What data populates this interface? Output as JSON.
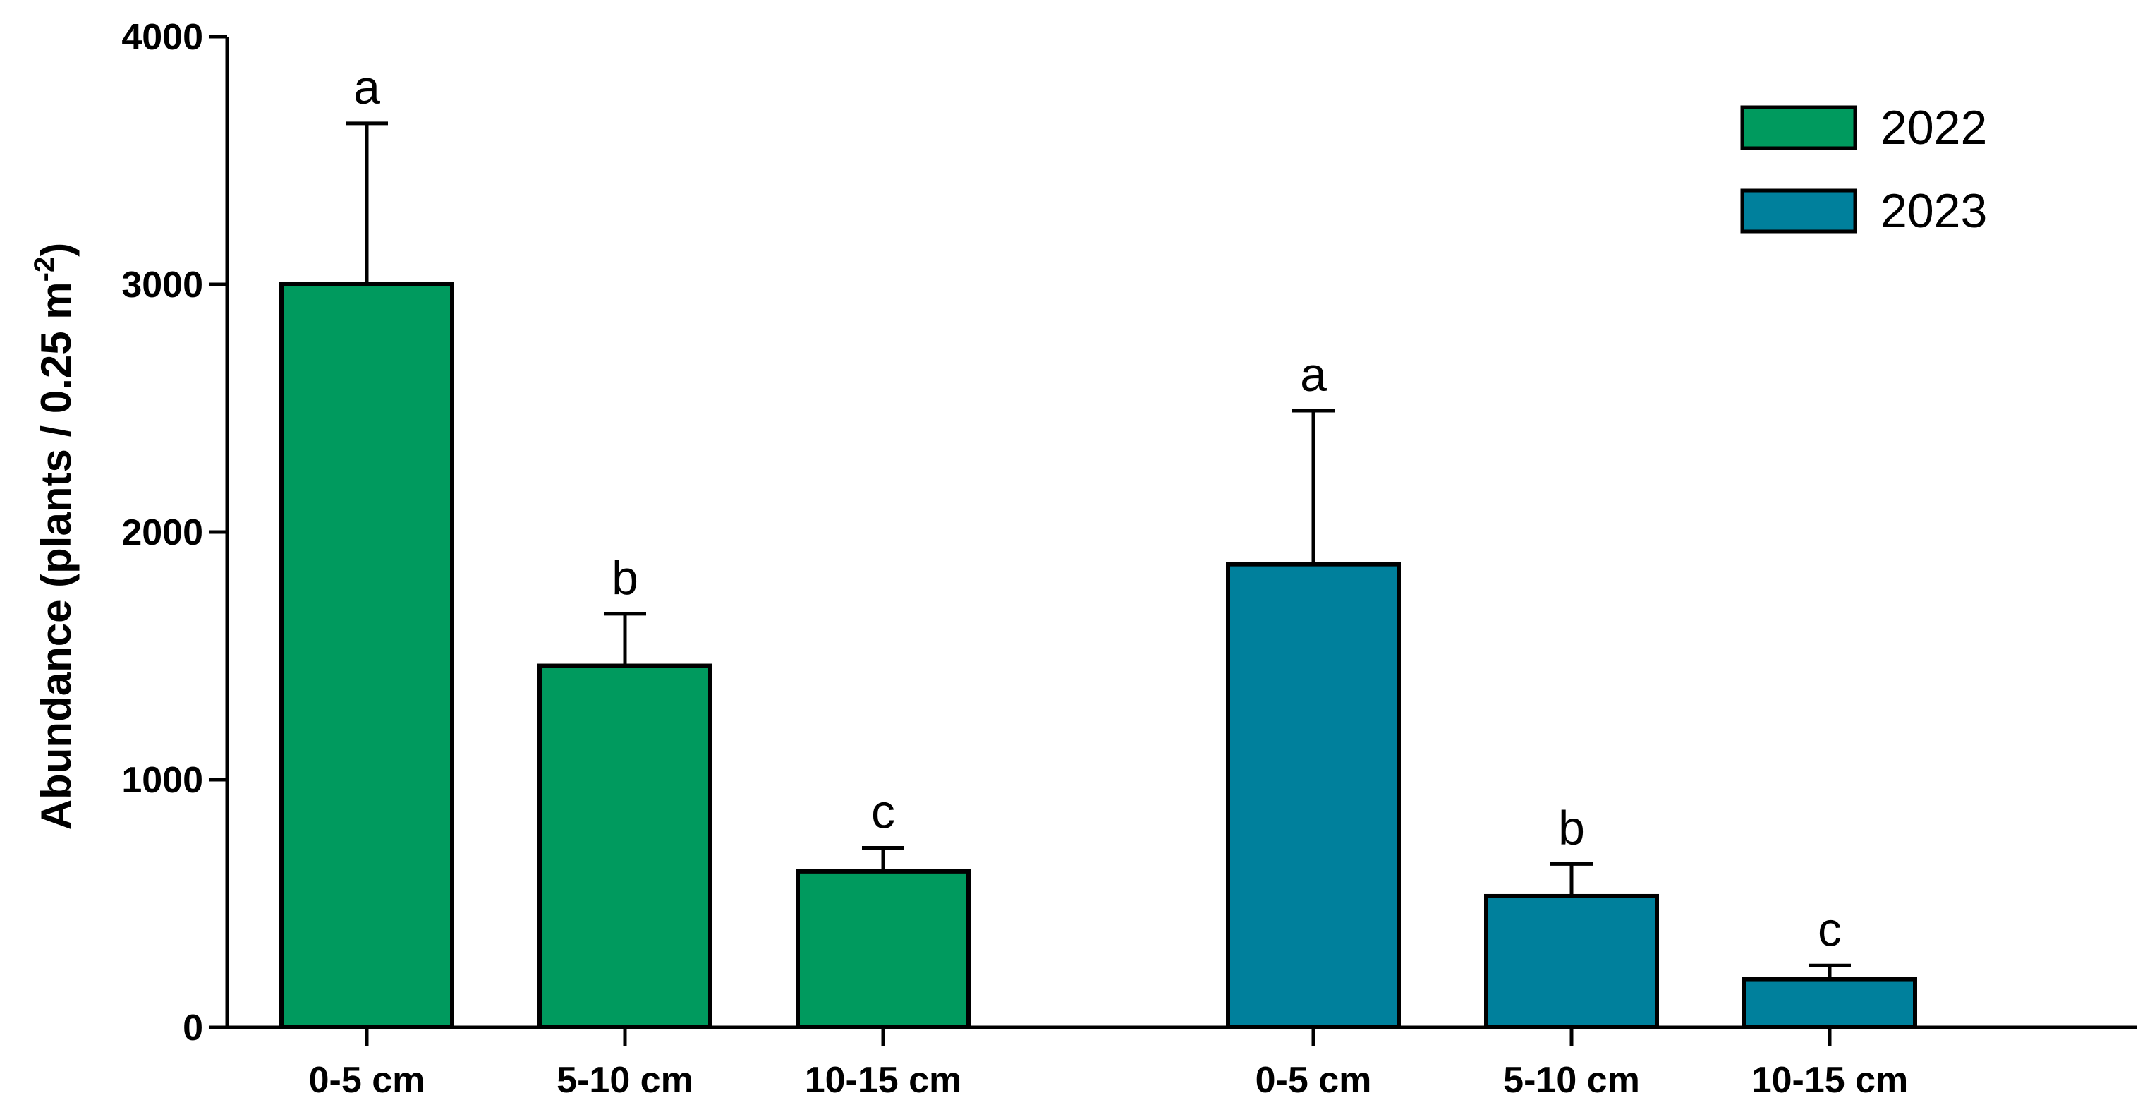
{
  "chart_data": {
    "type": "bar",
    "title": "",
    "xlabel": "",
    "ylabel": "Abundance (plants / 0.25 m",
    "ylabel_superscript": "-2",
    "ylabel_suffix": ")",
    "ylim": [
      0,
      4000
    ],
    "yticks": [
      "0",
      "1000",
      "2000",
      "3000",
      "4000"
    ],
    "categories": [
      "0-5 cm",
      "5-10 cm",
      "10-15 cm"
    ],
    "legend_position": "top-right",
    "series": [
      {
        "name": "2022",
        "color": "#009A5E",
        "values": [
          3000,
          1460,
          630
        ],
        "errors": [
          650,
          210,
          95
        ],
        "letters": [
          "a",
          "b",
          "c"
        ]
      },
      {
        "name": "2023",
        "color": "#00809C",
        "values": [
          1870,
          530,
          195
        ],
        "errors": [
          620,
          130,
          55
        ],
        "letters": [
          "a",
          "b",
          "c"
        ]
      }
    ]
  }
}
